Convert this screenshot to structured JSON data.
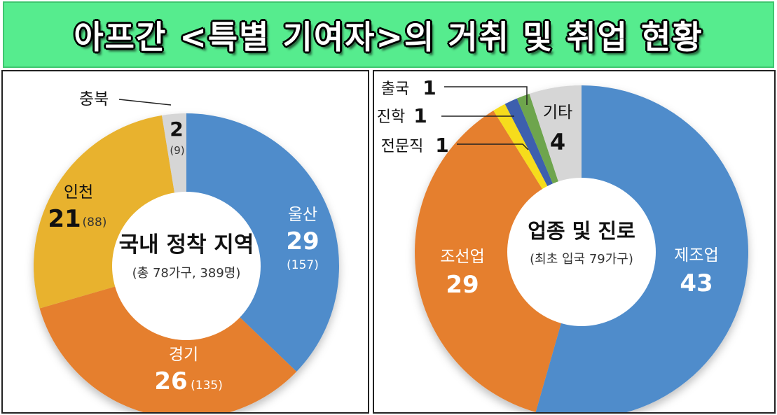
{
  "banner": {
    "title": "아프간 <특별 기여자>의 거취 및 취업 현황"
  },
  "colors": {
    "banner_bg": "#56ec8e",
    "blue": "#4f8ccb",
    "orange": "#e57f2e",
    "gold": "#e8b22e",
    "gray": "#d6d6d6",
    "yellow": "#f6dc1a",
    "darkblue": "#3c5fae",
    "green": "#6ea54d"
  },
  "chart_data": [
    {
      "type": "pie",
      "title": "국내 정착 지역",
      "subtitle": "(총 78가구, 389명)",
      "slices": [
        {
          "label": "울산",
          "value": 29,
          "sub": "(157)",
          "color": "#4f8ccb"
        },
        {
          "label": "경기",
          "value": 26,
          "sub": "(135)",
          "color": "#e57f2e"
        },
        {
          "label": "인천",
          "value": 21,
          "sub": "(88)",
          "color": "#e8b22e"
        },
        {
          "label": "충북",
          "value": 2,
          "sub": "(9)",
          "color": "#d6d6d6"
        }
      ]
    },
    {
      "type": "pie",
      "title": "업종 및 진로",
      "subtitle": "(최초 입국 79가구)",
      "slices": [
        {
          "label": "제조업",
          "value": 43,
          "color": "#4f8ccb"
        },
        {
          "label": "조선업",
          "value": 29,
          "color": "#e57f2e"
        },
        {
          "label": "전문직",
          "value": 1,
          "color": "#f6dc1a"
        },
        {
          "label": "진학",
          "value": 1,
          "color": "#3c5fae"
        },
        {
          "label": "출국",
          "value": 1,
          "color": "#6ea54d"
        },
        {
          "label": "기타",
          "value": 4,
          "color": "#d6d6d6"
        }
      ]
    }
  ]
}
